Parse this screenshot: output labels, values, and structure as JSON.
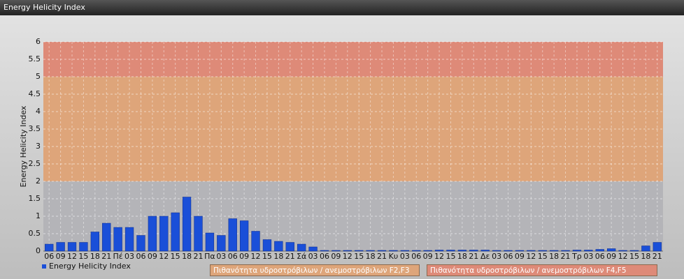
{
  "chart_data": {
    "type": "bar",
    "title": "Energy Helicity Index",
    "y_label": "Energy Helicity Index",
    "categories": [
      "06",
      "09",
      "12",
      "15",
      "18",
      "21",
      "Πέ",
      "03",
      "06",
      "09",
      "12",
      "15",
      "18",
      "21",
      "Πα",
      "03",
      "06",
      "09",
      "12",
      "15",
      "18",
      "21",
      "Σά",
      "03",
      "06",
      "09",
      "12",
      "15",
      "18",
      "21",
      "Κυ",
      "03",
      "06",
      "09",
      "12",
      "15",
      "18",
      "21",
      "Δε",
      "03",
      "06",
      "09",
      "12",
      "15",
      "18",
      "21",
      "Τρ",
      "03",
      "06",
      "09",
      "12",
      "15",
      "18",
      "21"
    ],
    "series": [
      {
        "name": "Energy Helicity Index",
        "color": "#1a4fd8",
        "values": [
          0.2,
          0.25,
          0.25,
          0.25,
          0.55,
          0.8,
          0.68,
          0.68,
          0.45,
          1.0,
          1.0,
          1.1,
          1.55,
          1.0,
          0.52,
          0.45,
          0.93,
          0.87,
          0.57,
          0.33,
          0.28,
          0.25,
          0.2,
          0.12,
          0.02,
          0.02,
          0.02,
          0.02,
          0.02,
          0.02,
          0.02,
          0.02,
          0.02,
          0.02,
          0.03,
          0.03,
          0.03,
          0.03,
          0.03,
          0.02,
          0.02,
          0.02,
          0.02,
          0.02,
          0.02,
          0.02,
          0.03,
          0.03,
          0.05,
          0.07,
          0.02,
          0.02,
          0.15,
          0.25
        ]
      }
    ],
    "ylim": [
      0,
      6
    ],
    "yticks": [
      0,
      0.5,
      1,
      1.5,
      2,
      2.5,
      3,
      3.5,
      4,
      4.5,
      5,
      5.5,
      6
    ],
    "grid": true,
    "bands": [
      {
        "from": 2,
        "to": 5,
        "color": "#dea57a",
        "label": "Πιθανότητα υδροστρόβιλων / ανεμοστρόβιλων F2,F3"
      },
      {
        "from": 5,
        "to": 6,
        "color": "#de8a78",
        "label": "Πιθανότητα υδροστρόβιλων / ανεμοστρόβιλων F4,F5"
      }
    ]
  }
}
